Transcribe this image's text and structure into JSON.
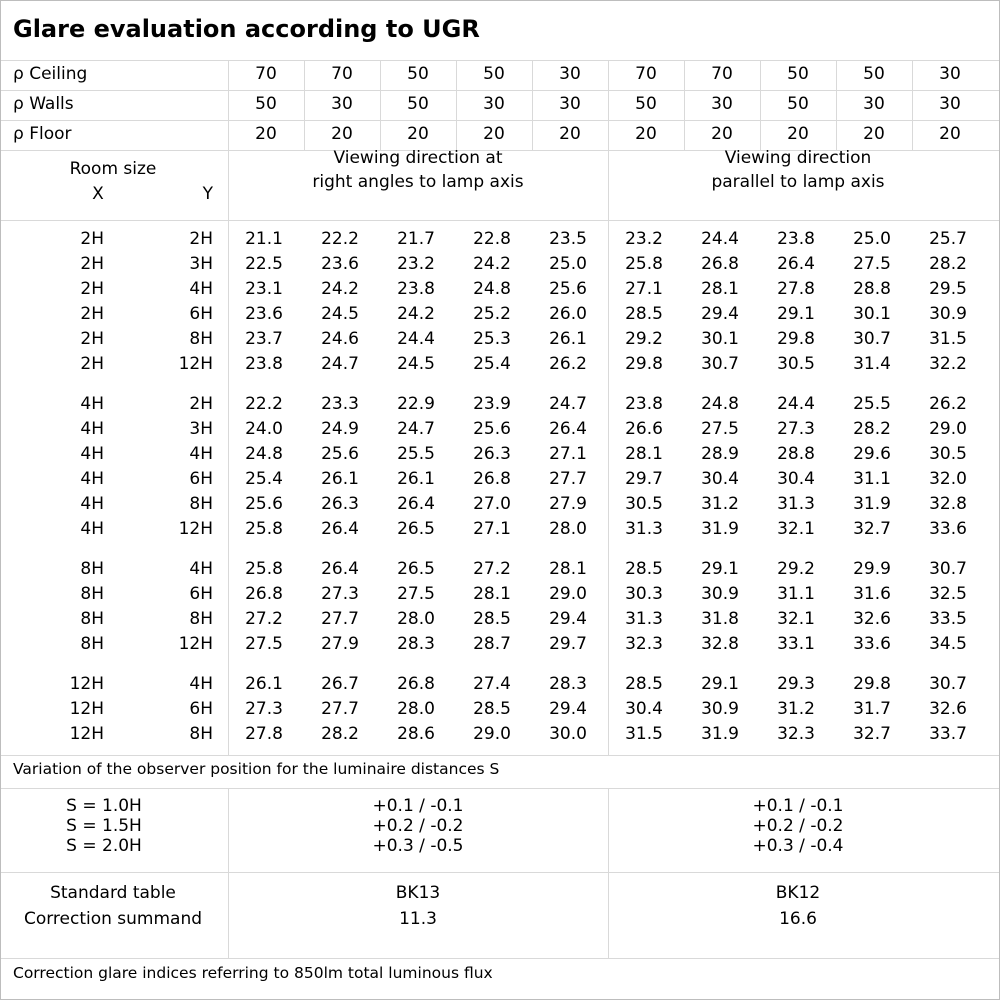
{
  "title": "Glare evaluation according to UGR",
  "reflectance": {
    "ceiling": {
      "label": "ρ Ceiling",
      "values": [
        "70",
        "70",
        "50",
        "50",
        "30",
        "70",
        "70",
        "50",
        "50",
        "30"
      ]
    },
    "walls": {
      "label": "ρ Walls",
      "values": [
        "50",
        "30",
        "50",
        "30",
        "30",
        "50",
        "30",
        "50",
        "30",
        "30"
      ]
    },
    "floor": {
      "label": "ρ Floor",
      "values": [
        "20",
        "20",
        "20",
        "20",
        "20",
        "20",
        "20",
        "20",
        "20",
        "20"
      ]
    }
  },
  "header": {
    "room_size": "Room size",
    "x": "X",
    "y": "Y",
    "right_angles": [
      "Viewing direction at",
      "right angles to lamp axis"
    ],
    "parallel": [
      "Viewing direction",
      "parallel to lamp axis"
    ]
  },
  "groups": [
    {
      "rows": [
        {
          "x": "2H",
          "y": "2H",
          "values": [
            "21.1",
            "22.2",
            "21.7",
            "22.8",
            "23.5",
            "23.2",
            "24.4",
            "23.8",
            "25.0",
            "25.7"
          ]
        },
        {
          "x": "2H",
          "y": "3H",
          "values": [
            "22.5",
            "23.6",
            "23.2",
            "24.2",
            "25.0",
            "25.8",
            "26.8",
            "26.4",
            "27.5",
            "28.2"
          ]
        },
        {
          "x": "2H",
          "y": "4H",
          "values": [
            "23.1",
            "24.2",
            "23.8",
            "24.8",
            "25.6",
            "27.1",
            "28.1",
            "27.8",
            "28.8",
            "29.5"
          ]
        },
        {
          "x": "2H",
          "y": "6H",
          "values": [
            "23.6",
            "24.5",
            "24.2",
            "25.2",
            "26.0",
            "28.5",
            "29.4",
            "29.1",
            "30.1",
            "30.9"
          ]
        },
        {
          "x": "2H",
          "y": "8H",
          "values": [
            "23.7",
            "24.6",
            "24.4",
            "25.3",
            "26.1",
            "29.2",
            "30.1",
            "29.8",
            "30.7",
            "31.5"
          ]
        },
        {
          "x": "2H",
          "y": "12H",
          "values": [
            "23.8",
            "24.7",
            "24.5",
            "25.4",
            "26.2",
            "29.8",
            "30.7",
            "30.5",
            "31.4",
            "32.2"
          ]
        }
      ]
    },
    {
      "rows": [
        {
          "x": "4H",
          "y": "2H",
          "values": [
            "22.2",
            "23.3",
            "22.9",
            "23.9",
            "24.7",
            "23.8",
            "24.8",
            "24.4",
            "25.5",
            "26.2"
          ]
        },
        {
          "x": "4H",
          "y": "3H",
          "values": [
            "24.0",
            "24.9",
            "24.7",
            "25.6",
            "26.4",
            "26.6",
            "27.5",
            "27.3",
            "28.2",
            "29.0"
          ]
        },
        {
          "x": "4H",
          "y": "4H",
          "values": [
            "24.8",
            "25.6",
            "25.5",
            "26.3",
            "27.1",
            "28.1",
            "28.9",
            "28.8",
            "29.6",
            "30.5"
          ]
        },
        {
          "x": "4H",
          "y": "6H",
          "values": [
            "25.4",
            "26.1",
            "26.1",
            "26.8",
            "27.7",
            "29.7",
            "30.4",
            "30.4",
            "31.1",
            "32.0"
          ]
        },
        {
          "x": "4H",
          "y": "8H",
          "values": [
            "25.6",
            "26.3",
            "26.4",
            "27.0",
            "27.9",
            "30.5",
            "31.2",
            "31.3",
            "31.9",
            "32.8"
          ]
        },
        {
          "x": "4H",
          "y": "12H",
          "values": [
            "25.8",
            "26.4",
            "26.5",
            "27.1",
            "28.0",
            "31.3",
            "31.9",
            "32.1",
            "32.7",
            "33.6"
          ]
        }
      ]
    },
    {
      "rows": [
        {
          "x": "8H",
          "y": "4H",
          "values": [
            "25.8",
            "26.4",
            "26.5",
            "27.2",
            "28.1",
            "28.5",
            "29.1",
            "29.2",
            "29.9",
            "30.7"
          ]
        },
        {
          "x": "8H",
          "y": "6H",
          "values": [
            "26.8",
            "27.3",
            "27.5",
            "28.1",
            "29.0",
            "30.3",
            "30.9",
            "31.1",
            "31.6",
            "32.5"
          ]
        },
        {
          "x": "8H",
          "y": "8H",
          "values": [
            "27.2",
            "27.7",
            "28.0",
            "28.5",
            "29.4",
            "31.3",
            "31.8",
            "32.1",
            "32.6",
            "33.5"
          ]
        },
        {
          "x": "8H",
          "y": "12H",
          "values": [
            "27.5",
            "27.9",
            "28.3",
            "28.7",
            "29.7",
            "32.3",
            "32.8",
            "33.1",
            "33.6",
            "34.5"
          ]
        }
      ]
    },
    {
      "rows": [
        {
          "x": "12H",
          "y": "4H",
          "values": [
            "26.1",
            "26.7",
            "26.8",
            "27.4",
            "28.3",
            "28.5",
            "29.1",
            "29.3",
            "29.8",
            "30.7"
          ]
        },
        {
          "x": "12H",
          "y": "6H",
          "values": [
            "27.3",
            "27.7",
            "28.0",
            "28.5",
            "29.4",
            "30.4",
            "30.9",
            "31.2",
            "31.7",
            "32.6"
          ]
        },
        {
          "x": "12H",
          "y": "8H",
          "values": [
            "27.8",
            "28.2",
            "28.6",
            "29.0",
            "30.0",
            "31.5",
            "31.9",
            "32.3",
            "32.7",
            "33.7"
          ]
        }
      ]
    }
  ],
  "variation": {
    "label": "Variation of the observer position for the luminaire distances S",
    "rows": [
      {
        "s": "S = 1.0H",
        "right": "+0.1 / -0.1",
        "parallel": "+0.1 / -0.1"
      },
      {
        "s": "S = 1.5H",
        "right": "+0.2 / -0.2",
        "parallel": "+0.2 / -0.2"
      },
      {
        "s": "S = 2.0H",
        "right": "+0.3 / -0.5",
        "parallel": "+0.3 / -0.4"
      }
    ]
  },
  "standard": {
    "table_label": "Standard table",
    "summand_label": "Correction summand",
    "right_table": "BK13",
    "right_summand": "11.3",
    "parallel_table": "BK12",
    "parallel_summand": "16.6"
  },
  "footer": "Correction glare indices referring to 850lm total luminous flux"
}
